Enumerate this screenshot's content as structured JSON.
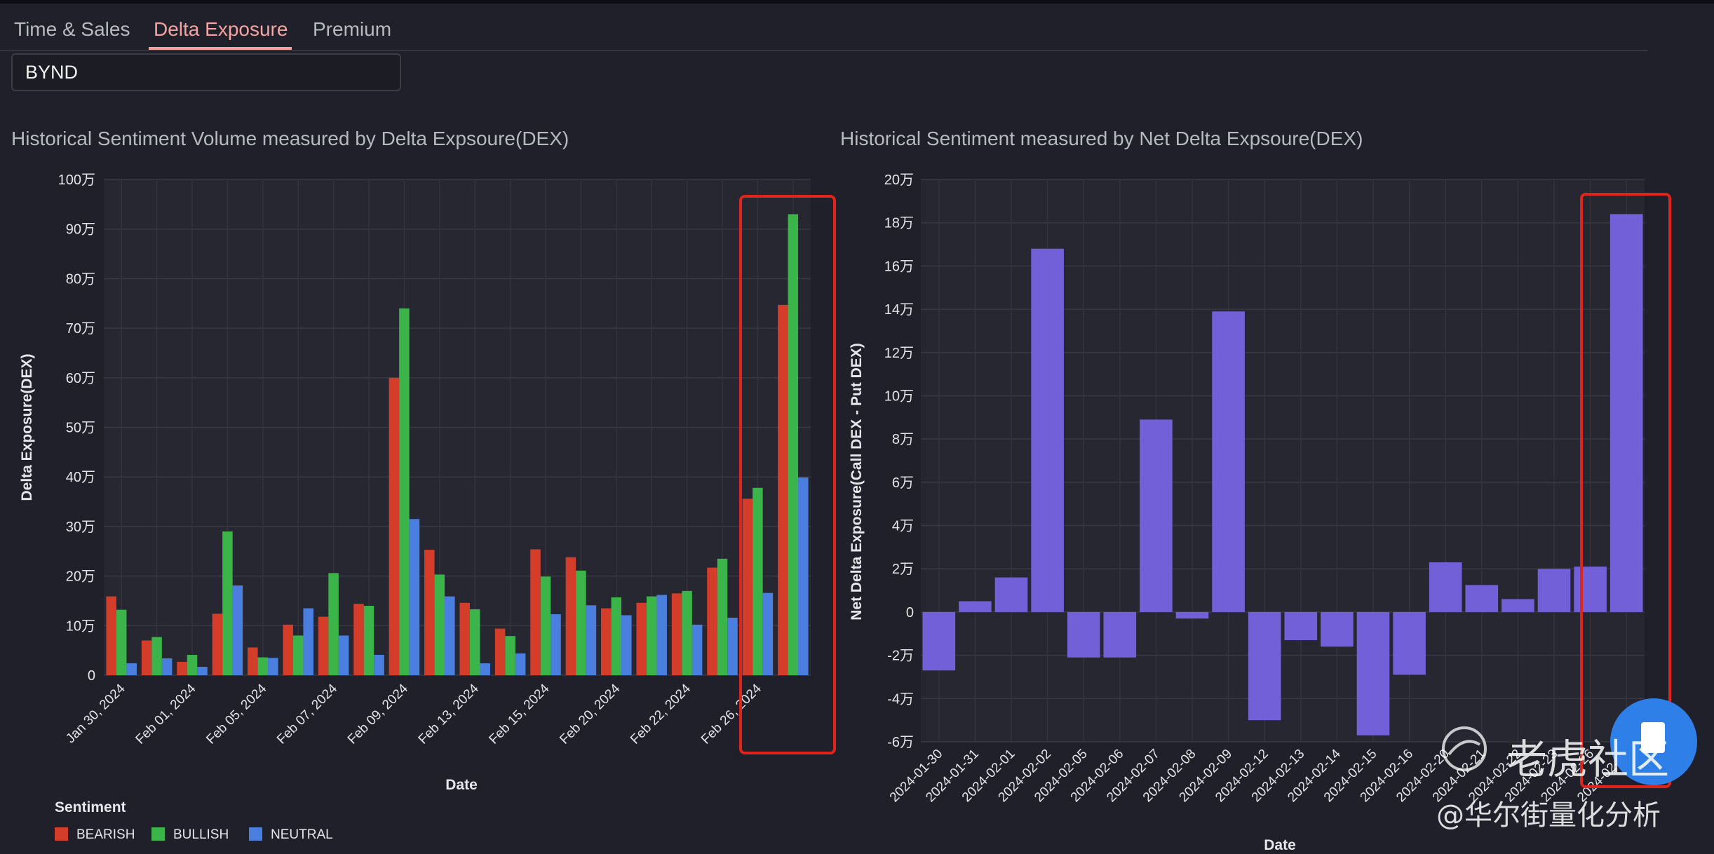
{
  "tabs": [
    {
      "label": "Time & Sales",
      "active": false
    },
    {
      "label": "Delta Exposure",
      "active": true
    },
    {
      "label": "Premium",
      "active": false
    }
  ],
  "ticker": {
    "value": "BYND"
  },
  "legend": {
    "title": "Sentiment",
    "items": [
      {
        "label": "BEARISH",
        "color": "#d43d2a"
      },
      {
        "label": "BULLISH",
        "color": "#3bb54a"
      },
      {
        "label": "NEUTRAL",
        "color": "#4a7fe0"
      }
    ]
  },
  "watermark": {
    "brand": "老虎社区",
    "handle": "@华尔街量化分析"
  },
  "chart_data": [
    {
      "type": "bar",
      "title": "Historical Sentiment Volume measured by Delta Expsoure(DEX)",
      "xlabel": "Date",
      "ylabel": "Delta Exposure(DEX)",
      "ylim": [
        0,
        1000000
      ],
      "yticks": [
        {
          "value": 0,
          "label": "0"
        },
        {
          "value": 100000,
          "label": "10万"
        },
        {
          "value": 200000,
          "label": "20万"
        },
        {
          "value": 300000,
          "label": "30万"
        },
        {
          "value": 400000,
          "label": "40万"
        },
        {
          "value": 500000,
          "label": "50万"
        },
        {
          "value": 600000,
          "label": "60万"
        },
        {
          "value": 700000,
          "label": "70万"
        },
        {
          "value": 800000,
          "label": "80万"
        },
        {
          "value": 900000,
          "label": "90万"
        },
        {
          "value": 1000000,
          "label": "100万"
        }
      ],
      "categories": [
        "2024-01-30",
        "2024-01-31",
        "2024-02-01",
        "2024-02-02",
        "2024-02-05",
        "2024-02-06",
        "2024-02-07",
        "2024-02-08",
        "2024-02-09",
        "2024-02-12",
        "2024-02-13",
        "2024-02-14",
        "2024-02-15",
        "2024-02-16",
        "2024-02-20",
        "2024-02-21",
        "2024-02-22",
        "2024-02-23",
        "2024-02-26",
        "2024-02-27"
      ],
      "xticks": [
        "Jan 30, 2024",
        "Feb 01, 2024",
        "Feb 05, 2024",
        "Feb 07, 2024",
        "Feb 09, 2024",
        "Feb 13, 2024",
        "Feb 15, 2024",
        "Feb 20, 2024",
        "Feb 22, 2024",
        "Feb 26, 2024"
      ],
      "series": [
        {
          "name": "BEARISH",
          "color": "#d43d2a",
          "values": [
            159000,
            70000,
            27000,
            124000,
            56000,
            102000,
            118000,
            144000,
            600000,
            253000,
            146000,
            94000,
            254000,
            238000,
            135000,
            146000,
            165000,
            217000,
            356000,
            747000
          ]
        },
        {
          "name": "BULLISH",
          "color": "#3bb54a",
          "values": [
            132000,
            77000,
            41000,
            290000,
            36000,
            80000,
            206000,
            140000,
            740000,
            203000,
            133000,
            79000,
            199000,
            211000,
            157000,
            159000,
            170000,
            235000,
            378000,
            930000
          ]
        },
        {
          "name": "NEUTRAL",
          "color": "#4a7fe0",
          "values": [
            24000,
            34000,
            17000,
            181000,
            35000,
            135000,
            80000,
            41000,
            315000,
            159000,
            24000,
            44000,
            123000,
            141000,
            121000,
            162000,
            102000,
            116000,
            166000,
            399000
          ]
        }
      ],
      "legend_position": "bottom-left",
      "grid": true
    },
    {
      "type": "bar",
      "title": "Historical Sentiment measured by Net Delta Expsoure(DEX)",
      "xlabel": "Date",
      "ylabel": "Net Delta Exposure(Call DEX - Put DEX)",
      "ylim": [
        -60000,
        200000
      ],
      "yticks": [
        {
          "value": -60000,
          "label": "-6万"
        },
        {
          "value": -40000,
          "label": "-4万"
        },
        {
          "value": -20000,
          "label": "-2万"
        },
        {
          "value": 0,
          "label": "0"
        },
        {
          "value": 20000,
          "label": "2万"
        },
        {
          "value": 40000,
          "label": "4万"
        },
        {
          "value": 60000,
          "label": "6万"
        },
        {
          "value": 80000,
          "label": "8万"
        },
        {
          "value": 100000,
          "label": "10万"
        },
        {
          "value": 120000,
          "label": "12万"
        },
        {
          "value": 140000,
          "label": "14万"
        },
        {
          "value": 160000,
          "label": "16万"
        },
        {
          "value": 180000,
          "label": "18万"
        },
        {
          "value": 200000,
          "label": "20万"
        }
      ],
      "categories": [
        "2024-01-30",
        "2024-01-31",
        "2024-02-01",
        "2024-02-02",
        "2024-02-05",
        "2024-02-06",
        "2024-02-07",
        "2024-02-08",
        "2024-02-09",
        "2024-02-12",
        "2024-02-13",
        "2024-02-14",
        "2024-02-15",
        "2024-02-16",
        "2024-02-20",
        "2024-02-21",
        "2024-02-22",
        "2024-02-23",
        "2024-02-26",
        "2024-02-27"
      ],
      "values": [
        -27000,
        5000,
        16000,
        168000,
        -21000,
        -21000,
        89000,
        -3000,
        139000,
        -50000,
        -13000,
        -16000,
        -57000,
        -29000,
        23000,
        12500,
        6000,
        20000,
        21000,
        184000
      ],
      "color": "#7160d8",
      "grid": true
    }
  ]
}
